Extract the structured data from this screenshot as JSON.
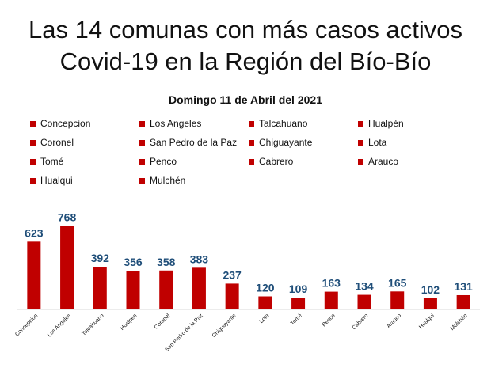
{
  "page": {
    "title_line1": "Las 14 comunas con más casos activos",
    "title_line2": "Covid-19 en la Región del Bío-Bío"
  },
  "colors": {
    "bar": "#c00000",
    "value_label": "#1f4e79",
    "axis": "#d9d9d9",
    "text": "#111111"
  },
  "chart_data": {
    "type": "bar",
    "title": "Domingo 11 de Abril del 2021",
    "categories": [
      "Concepcion",
      "Los Angeles",
      "Talcahuano",
      "Hualpén",
      "Coronel",
      "San Pedro de la Paz",
      "Chiguayante",
      "Lota",
      "Tomé",
      "Penco",
      "Cabrero",
      "Arauco",
      "Hualqui",
      "Mulchén"
    ],
    "values": [
      623,
      768,
      392,
      356,
      358,
      383,
      237,
      120,
      109,
      163,
      134,
      165,
      102,
      131
    ],
    "legend_placement": "top",
    "grid": false,
    "ylim": [
      0,
      800
    ]
  }
}
